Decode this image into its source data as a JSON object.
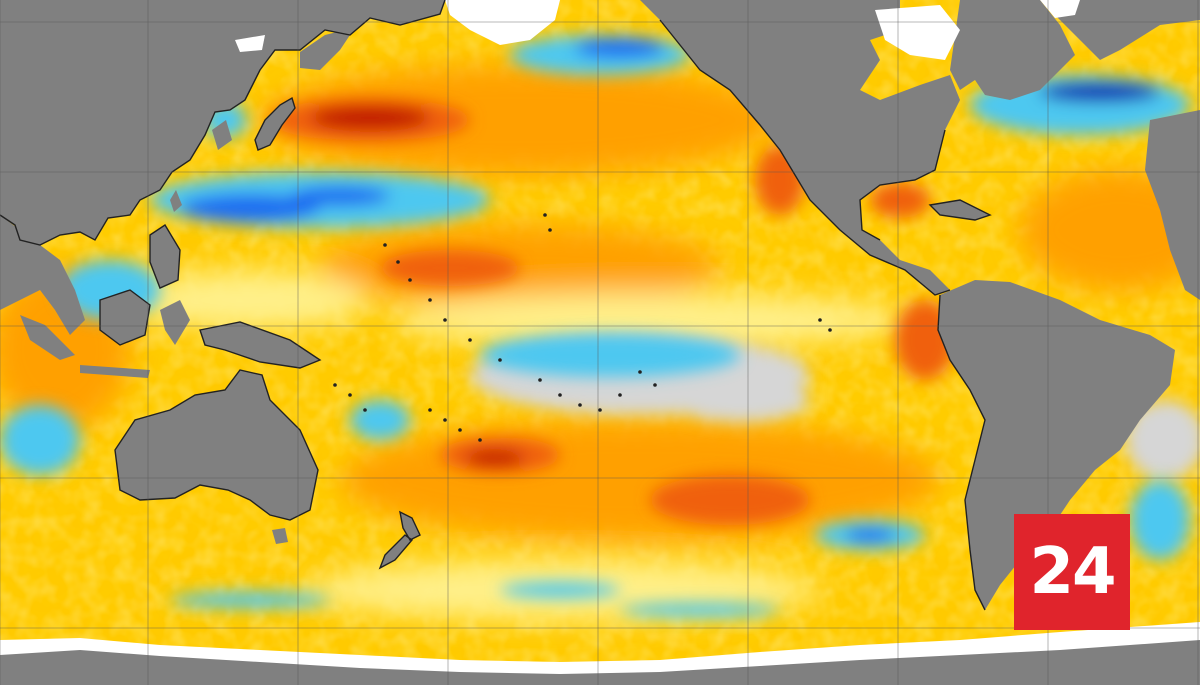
{
  "badge": {
    "text": "24",
    "color": "#e0242c"
  },
  "colors": {
    "land": "#808080",
    "ice": "#ffffff",
    "neutral": "#d6d6d6",
    "warm_light": "#fff08a",
    "warm": "#ffcc00",
    "warmer": "#ffa000",
    "hot": "#f06010",
    "very_hot": "#c01800",
    "cool": "#4ec8f0",
    "cold": "#1c6cf0",
    "very_cold": "#0a24b0",
    "coastline": "#222222",
    "grid": "#555555"
  },
  "icons": [
    "world-map-icon"
  ]
}
